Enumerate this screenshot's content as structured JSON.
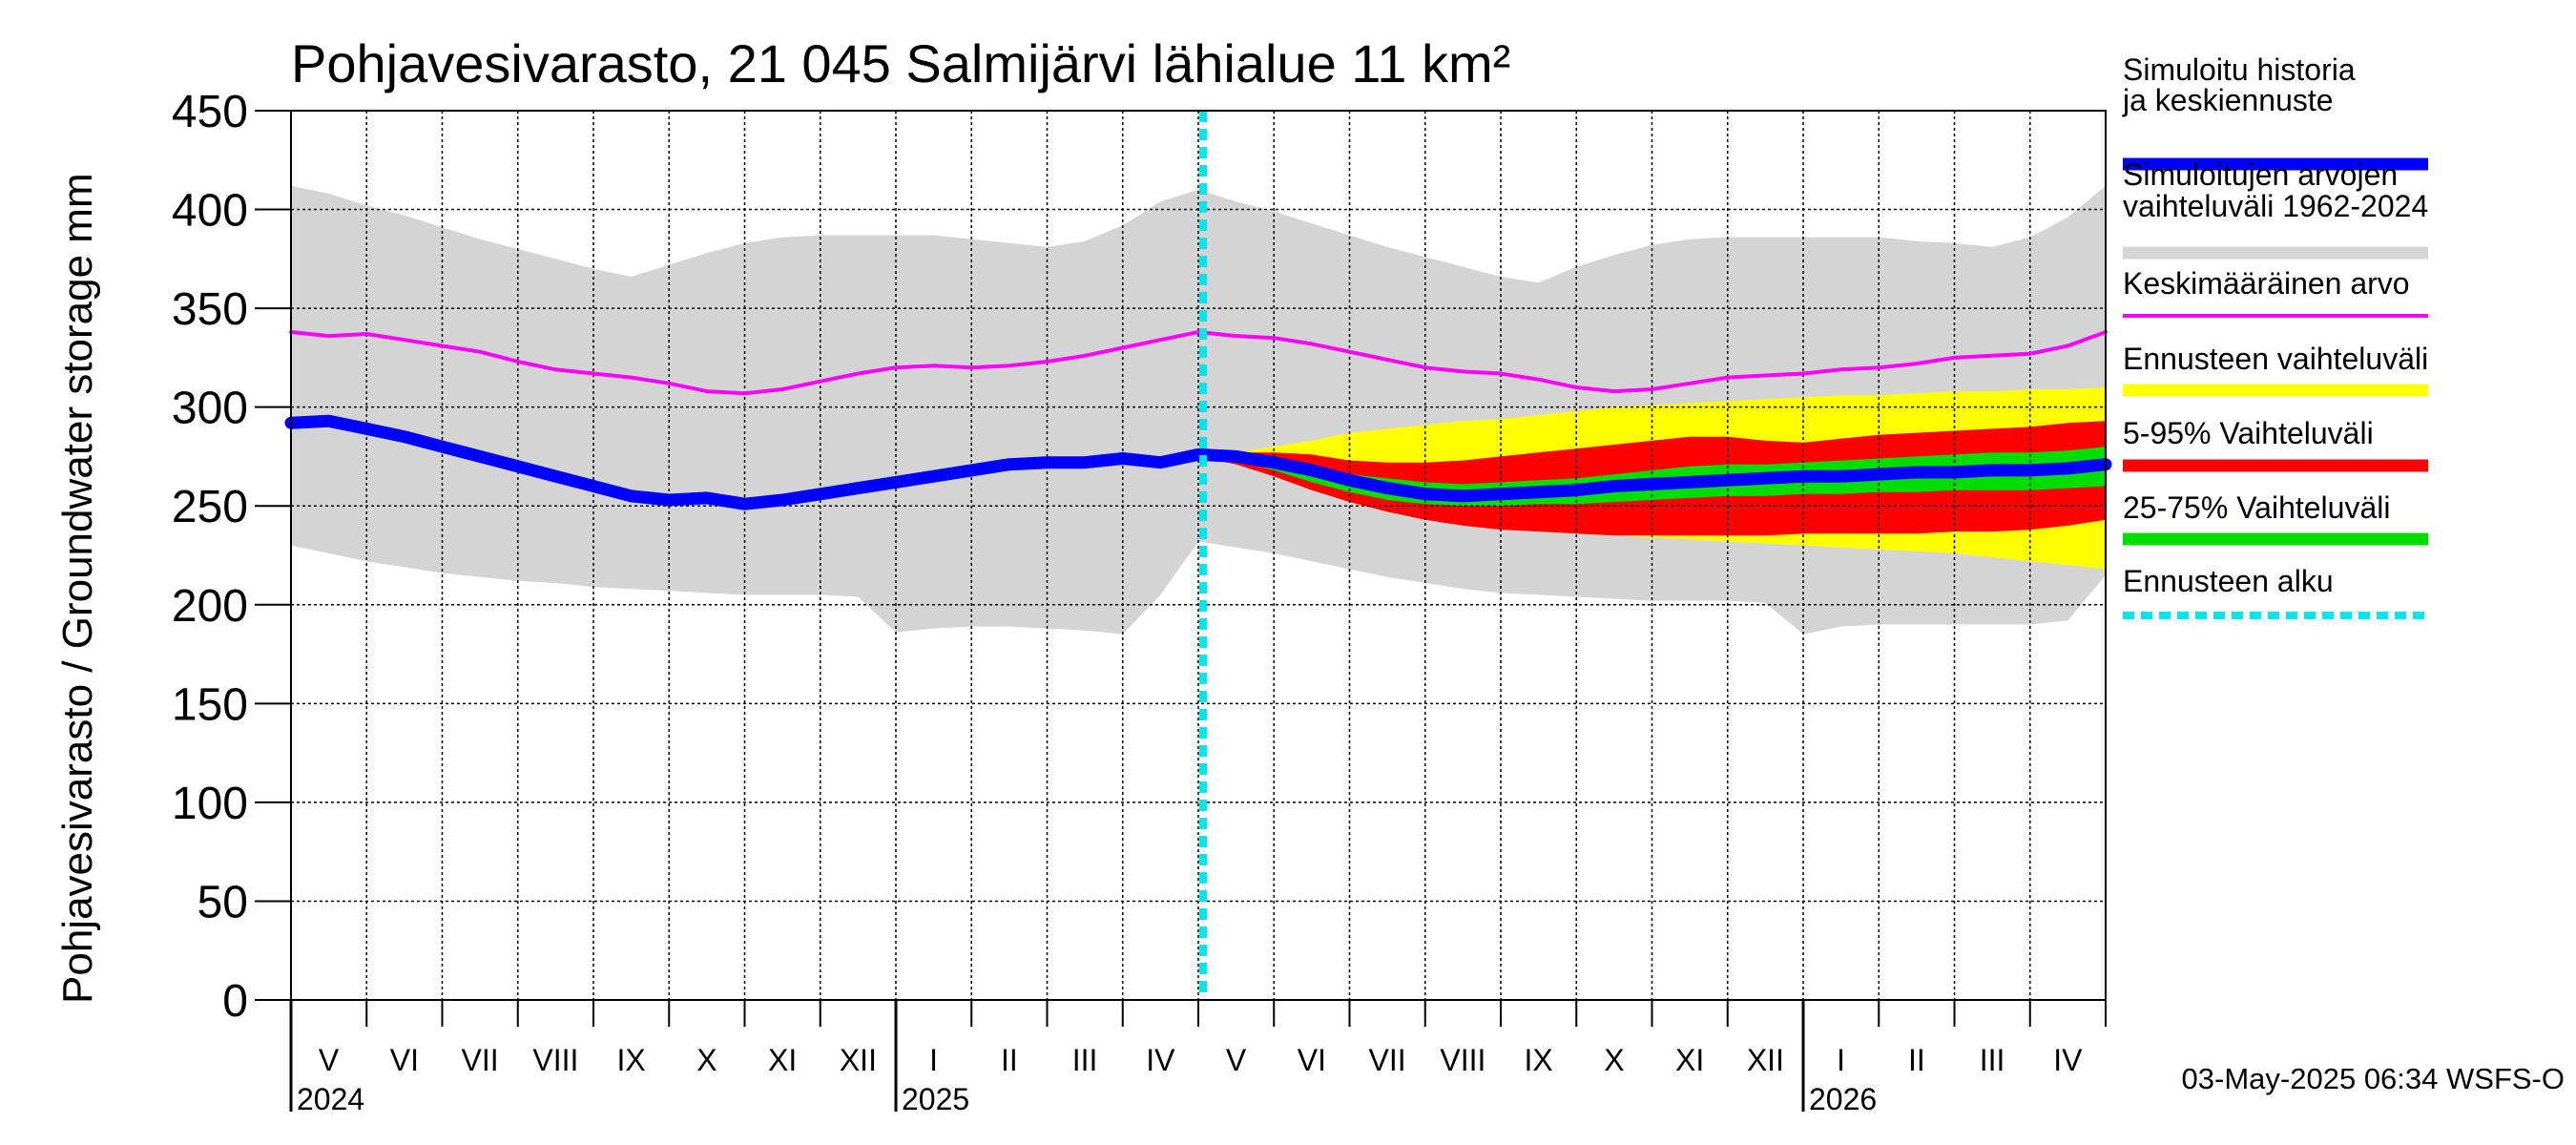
{
  "chart_data": {
    "type": "area",
    "title": "Pohjavesivarasto, 21 045 Salmijärvi lähialue 11 km²",
    "ylabel": "Pohjavesivarasto / Groundwater storage   mm",
    "ylim": [
      0,
      450
    ],
    "yticks": [
      0,
      50,
      100,
      150,
      200,
      250,
      300,
      350,
      400,
      450
    ],
    "x_range": [
      "2024-05-01",
      "2026-05-01"
    ],
    "forecast_start": "2025-05-03",
    "months": [
      "V",
      "VI",
      "VII",
      "VIII",
      "IX",
      "X",
      "XI",
      "XII",
      "I",
      "II",
      "III",
      "IV",
      "V",
      "VI",
      "VII",
      "VIII",
      "IX",
      "X",
      "XI",
      "XII",
      "I",
      "II",
      "III",
      "IV"
    ],
    "years": [
      {
        "label": "2024",
        "month_index": 0
      },
      {
        "label": "2025",
        "month_index": 8
      },
      {
        "label": "2026",
        "month_index": 20
      }
    ],
    "series": [
      {
        "name": "Simuloitujen arvojen vaihteluväli 1962-2024",
        "color": "#d4d4d4",
        "kind": "band",
        "x": [
          0,
          0.5,
          1,
          1.5,
          2,
          2.5,
          3,
          3.5,
          4,
          4.5,
          5,
          5.5,
          6,
          6.5,
          7,
          7.5,
          8,
          8.5,
          9,
          9.5,
          10,
          10.5,
          11,
          11.5,
          12,
          12.5,
          13,
          13.5,
          14,
          14.5,
          15,
          15.5,
          16,
          16.5,
          17,
          17.5,
          18,
          18.5,
          19,
          19.5,
          20,
          20.5,
          21,
          21.5,
          22,
          22.5,
          23,
          23.5,
          24
        ],
        "upper": [
          412,
          408,
          402,
          397,
          391,
          385,
          380,
          375,
          370,
          366,
          372,
          378,
          383,
          386,
          387,
          387,
          387,
          387,
          385,
          383,
          381,
          384,
          392,
          404,
          410,
          404,
          399,
          393,
          387,
          381,
          376,
          371,
          366,
          363,
          371,
          377,
          382,
          385,
          386,
          386,
          386,
          386,
          386,
          384,
          383,
          381,
          386,
          396,
          412
        ],
        "lower": [
          230,
          226,
          222,
          219,
          216,
          214,
          212,
          211,
          209,
          208,
          207,
          206,
          205,
          205,
          205,
          204,
          186,
          188,
          189,
          189,
          188,
          187,
          185,
          205,
          232,
          229,
          226,
          222,
          218,
          214,
          211,
          208,
          206,
          205,
          204,
          203,
          202,
          202,
          202,
          201,
          185,
          189,
          190,
          190,
          190,
          190,
          190,
          192,
          215
        ]
      },
      {
        "name": "Keskimääräinen arvo",
        "color": "#ff00ff",
        "kind": "line",
        "x": [
          0,
          0.5,
          1,
          1.5,
          2,
          2.5,
          3,
          3.5,
          4,
          4.5,
          5,
          5.5,
          6,
          6.5,
          7,
          7.5,
          8,
          8.5,
          9,
          9.5,
          10,
          10.5,
          11,
          11.5,
          12,
          12.5,
          13,
          13.5,
          14,
          14.5,
          15,
          15.5,
          16,
          16.5,
          17,
          17.5,
          18,
          18.5,
          19,
          19.5,
          20,
          20.5,
          21,
          21.5,
          22,
          22.5,
          23,
          23.5,
          24
        ],
        "values": [
          338,
          336,
          337,
          334,
          331,
          328,
          323,
          319,
          317,
          315,
          312,
          308,
          307,
          309,
          313,
          317,
          320,
          321,
          320,
          321,
          323,
          326,
          330,
          334,
          338,
          336,
          335,
          332,
          328,
          324,
          320,
          318,
          317,
          314,
          310,
          308,
          309,
          312,
          315,
          316,
          317,
          319,
          320,
          322,
          325,
          326,
          327,
          331,
          338
        ]
      },
      {
        "name": "Ennusteen vaihteluväli",
        "color": "#ffff00",
        "kind": "band",
        "x": [
          12,
          12.5,
          13,
          13.5,
          14,
          14.5,
          15,
          15.5,
          16,
          16.5,
          17,
          17.5,
          18,
          18.5,
          19,
          19.5,
          20,
          20.5,
          21,
          21.5,
          22,
          22.5,
          23,
          23.5,
          24
        ],
        "upper": [
          275,
          277,
          280,
          283,
          287,
          289,
          291,
          293,
          294,
          296,
          298,
          300,
          301,
          302,
          303,
          304,
          305,
          306,
          306,
          307,
          308,
          308,
          309,
          309,
          310
        ],
        "lower": [
          275,
          272,
          267,
          261,
          255,
          250,
          246,
          242,
          240,
          238,
          236,
          235,
          234,
          233,
          232,
          231,
          230,
          229,
          228,
          227,
          226,
          224,
          222,
          220,
          218
        ]
      },
      {
        "name": "5-95% Vaihteluväli",
        "color": "#ff0000",
        "kind": "band",
        "x": [
          12,
          12.5,
          13,
          13.5,
          14,
          14.5,
          15,
          15.5,
          16,
          16.5,
          17,
          17.5,
          18,
          18.5,
          19,
          19.5,
          20,
          20.5,
          21,
          21.5,
          22,
          22.5,
          23,
          23.5,
          24
        ],
        "upper": [
          275,
          277,
          277,
          276,
          273,
          272,
          272,
          273,
          275,
          277,
          279,
          281,
          283,
          285,
          285,
          283,
          282,
          284,
          286,
          287,
          288,
          289,
          290,
          292,
          293
        ],
        "lower": [
          275,
          271,
          265,
          258,
          252,
          247,
          243,
          240,
          238,
          237,
          236,
          235,
          235,
          235,
          235,
          235,
          236,
          236,
          236,
          236,
          237,
          237,
          238,
          240,
          243
        ]
      },
      {
        "name": "25-75% Vaihteluväli",
        "color": "#00dd00",
        "kind": "band",
        "x": [
          12,
          12.5,
          13,
          13.5,
          14,
          14.5,
          15,
          15.5,
          16,
          16.5,
          17,
          17.5,
          18,
          18.5,
          19,
          19.5,
          20,
          20.5,
          21,
          21.5,
          22,
          22.5,
          23,
          23.5,
          24
        ],
        "upper": [
          275,
          274,
          272,
          269,
          266,
          264,
          262,
          261,
          262,
          263,
          264,
          266,
          268,
          270,
          271,
          271,
          272,
          273,
          274,
          275,
          276,
          277,
          277,
          278,
          280
        ],
        "lower": [
          275,
          273,
          268,
          262,
          257,
          253,
          251,
          250,
          250,
          251,
          251,
          252,
          253,
          254,
          255,
          255,
          256,
          256,
          257,
          257,
          258,
          258,
          258,
          259,
          260
        ]
      },
      {
        "name": "Simuloitu historia ja keskiennuste",
        "color": "#0000ff",
        "kind": "line",
        "x": [
          0,
          0.5,
          1,
          1.5,
          2,
          2.5,
          3,
          3.5,
          4,
          4.5,
          5,
          5.5,
          6,
          6.5,
          7,
          7.5,
          8,
          8.5,
          9,
          9.5,
          10,
          10.5,
          11,
          11.5,
          12,
          12.5,
          13,
          13.5,
          14,
          14.5,
          15,
          15.5,
          16,
          16.5,
          17,
          17.5,
          18,
          18.5,
          19,
          19.5,
          20,
          20.5,
          21,
          21.5,
          22,
          22.5,
          23,
          23.5,
          24
        ],
        "values": [
          292,
          293,
          289,
          285,
          280,
          275,
          270,
          265,
          260,
          255,
          253,
          254,
          251,
          253,
          256,
          259,
          262,
          265,
          268,
          271,
          272,
          272,
          274,
          272,
          276,
          275,
          272,
          268,
          263,
          259,
          256,
          255,
          256,
          257,
          258,
          260,
          261,
          262,
          263,
          264,
          265,
          265,
          266,
          267,
          267,
          268,
          268,
          269,
          271
        ]
      }
    ]
  },
  "legend": {
    "items": [
      {
        "label": "Simuloitu historia ja keskiennuste",
        "color": "#0000ff",
        "style": "solid"
      },
      {
        "label": "Simuloitujen arvojen vaihteluväli 1962-2024",
        "color": "#d4d4d4",
        "style": "solid"
      },
      {
        "label": "Keskimääräinen arvo",
        "color": "#ff00ff",
        "style": "thin"
      },
      {
        "label": "Ennusteen vaihteluväli",
        "color": "#ffff00",
        "style": "solid"
      },
      {
        "label": "5-95% Vaihteluväli",
        "color": "#ff0000",
        "style": "solid"
      },
      {
        "label": "25-75% Vaihteluväli",
        "color": "#00dd00",
        "style": "solid"
      },
      {
        "label": "Ennusteen alku",
        "color": "#00e5ee",
        "style": "dashed"
      }
    ]
  },
  "footer": {
    "timestamp": "03-May-2025 06:34 WSFS-O"
  }
}
